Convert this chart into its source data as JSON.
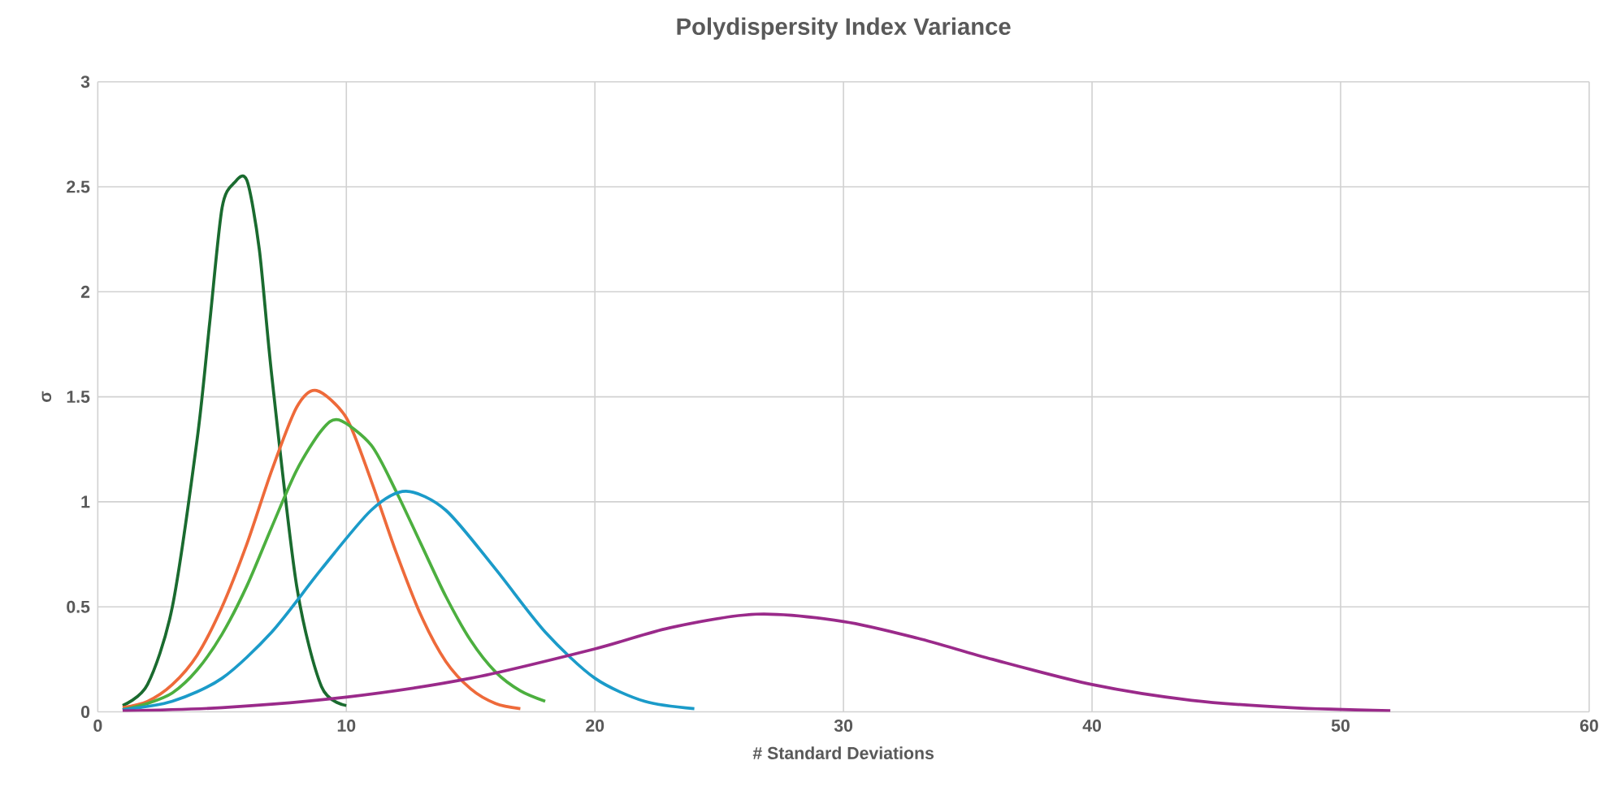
{
  "chart_data": {
    "type": "line",
    "title": "Polydispersity Index Variance",
    "xlabel": "# Standard Deviations",
    "ylabel": "σ",
    "xlim": [
      0,
      60
    ],
    "xticks": [
      0,
      10,
      20,
      30,
      40,
      50,
      60
    ],
    "ylim": [
      0,
      3
    ],
    "yticks": [
      0,
      0.5,
      1,
      1.5,
      2,
      2.5,
      3
    ],
    "grid": true,
    "marker": "none",
    "line_style": "solid",
    "series": [
      {
        "color": "#1a6b2f",
        "x": [
          1,
          2,
          3,
          4,
          4.5,
          5,
          5.5,
          6,
          6.5,
          7,
          8,
          9,
          10
        ],
        "values": [
          0.03,
          0.13,
          0.5,
          1.3,
          1.85,
          2.4,
          2.52,
          2.53,
          2.2,
          1.6,
          0.6,
          0.12,
          0.03
        ]
      },
      {
        "color": "#ee6a3a",
        "x": [
          1,
          2,
          3,
          4,
          5,
          6,
          7,
          8,
          8.8,
          10,
          11,
          12,
          13,
          14,
          15,
          16,
          17
        ],
        "values": [
          0.02,
          0.05,
          0.13,
          0.27,
          0.5,
          0.8,
          1.15,
          1.45,
          1.53,
          1.4,
          1.1,
          0.76,
          0.46,
          0.24,
          0.11,
          0.04,
          0.015
        ]
      },
      {
        "color": "#4caf3f",
        "x": [
          1,
          2,
          3,
          4,
          5,
          6,
          7,
          8,
          9,
          9.7,
          11,
          12,
          13,
          14,
          15,
          16,
          17,
          18
        ],
        "values": [
          0.01,
          0.04,
          0.09,
          0.2,
          0.37,
          0.6,
          0.88,
          1.15,
          1.34,
          1.39,
          1.27,
          1.05,
          0.8,
          0.55,
          0.34,
          0.19,
          0.1,
          0.05
        ]
      },
      {
        "color": "#1b9bc9",
        "x": [
          1,
          3,
          5,
          7,
          9,
          11,
          12.4,
          14,
          16,
          18,
          20,
          22,
          24
        ],
        "values": [
          0.01,
          0.05,
          0.16,
          0.38,
          0.68,
          0.96,
          1.05,
          0.96,
          0.68,
          0.38,
          0.16,
          0.05,
          0.015
        ]
      },
      {
        "color": "#9a2a8a",
        "x": [
          1,
          5,
          10,
          15,
          20,
          23,
          26.5,
          30,
          33,
          36,
          40,
          44,
          48,
          52
        ],
        "values": [
          0.005,
          0.02,
          0.07,
          0.16,
          0.3,
          0.4,
          0.465,
          0.43,
          0.35,
          0.25,
          0.13,
          0.055,
          0.02,
          0.005
        ]
      }
    ]
  }
}
